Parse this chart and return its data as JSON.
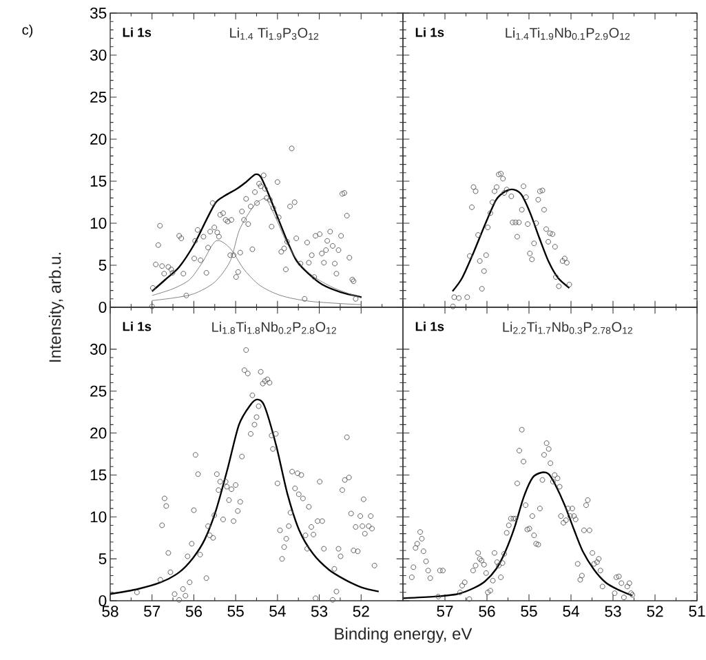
{
  "chart_data": [
    {
      "type": "scatter",
      "title": "Li 1s",
      "subtitle": "Li$_{1.4}$ Ti$_{1.9}$P$_{3}$O$_{12}$",
      "ylabel": "Intensity, arb.u.",
      "annotations": [
        "c)"
      ],
      "xlim": [
        58,
        51
      ],
      "ylim": [
        0,
        35
      ],
      "xticks": [
        58,
        57,
        56,
        55,
        54,
        53,
        52,
        51
      ],
      "yticks": [
        0,
        5,
        10,
        15,
        20,
        25,
        30,
        35
      ],
      "tick_labels": "y",
      "series": [
        {
          "color": "#555555",
          "marker": "circle",
          "x": [
            57.0,
            56.98,
            56.85,
            56.81,
            56.91,
            56.76,
            56.71,
            56.61,
            56.54,
            56.51,
            56.35,
            56.3,
            56.25,
            56.18,
            55.99,
            55.97,
            55.91,
            55.84,
            55.77,
            55.7,
            55.66,
            55.61,
            55.55,
            55.51,
            55.44,
            55.4,
            55.37,
            55.3,
            55.24,
            55.19,
            55.13,
            55.1,
            55.05,
            54.99,
            54.94,
            54.89,
            54.85,
            54.8,
            54.75,
            54.7,
            54.64,
            54.6,
            54.54,
            54.49,
            54.44,
            54.4,
            54.33,
            54.3,
            54.26,
            54.18,
            54.14,
            54.1,
            54.0,
            53.97,
            53.91,
            53.84,
            53.8,
            53.77,
            53.7,
            53.66,
            53.59,
            53.55,
            53.45,
            53.35,
            53.29,
            53.25,
            53.18,
            53.12,
            53.09,
            52.99,
            52.94,
            52.89,
            52.84,
            52.81,
            52.74,
            52.68,
            52.63,
            52.59,
            52.54,
            52.48,
            52.45,
            52.4,
            52.34,
            52.28,
            52.21,
            52.18,
            52.13
          ],
          "values": [
            0.1,
            2.3,
            7.4,
            9.7,
            5.1,
            4.9,
            4.0,
            4.8,
            4.5,
            4.1,
            8.5,
            8.2,
            4.0,
            1.4,
            5.8,
            7.9,
            9.2,
            5.6,
            8.4,
            4.1,
            7.1,
            9.0,
            12.4,
            9.5,
            8.9,
            8.4,
            11.0,
            11.2,
            10.4,
            10.2,
            6.2,
            10.4,
            6.2,
            3.6,
            4.2,
            6.5,
            11.4,
            10.4,
            12.9,
            9.9,
            12.0,
            6.9,
            13.7,
            12.4,
            14.7,
            14.4,
            15.7,
            14.1,
            13.0,
            12.8,
            9.6,
            11.8,
            14.9,
            10.7,
            6.6,
            7.0,
            4.5,
            7.8,
            12.0,
            18.9,
            12.5,
            8.2,
            5.2,
            1.0,
            7.7,
            5.3,
            6.2,
            3.6,
            8.5,
            8.7,
            6.4,
            5.3,
            6.8,
            7.9,
            9.0,
            7.3,
            5.2,
            4.0,
            6.8,
            8.5,
            13.5,
            13.6,
            10.9,
            5.9,
            3.3,
            3.1,
            1.0
          ]
        },
        {
          "type": "line",
          "color": "#000000",
          "x": [
            57.0,
            56.68,
            56.35,
            55.99,
            55.69,
            55.47,
            55.25,
            54.97,
            54.75,
            54.53,
            54.4,
            54.2,
            53.98,
            53.76,
            53.54,
            53.26,
            52.93,
            52.49,
            51.99
          ],
          "values": [
            1.9,
            3.3,
            4.8,
            7.5,
            10.5,
            12.5,
            13.3,
            14.1,
            14.9,
            15.8,
            15.5,
            13.3,
            10.5,
            7.8,
            5.5,
            4.0,
            2.7,
            1.8,
            1.2
          ]
        },
        {
          "type": "line",
          "color": "#777777",
          "x": [
            57.0,
            56.5,
            56.1,
            55.8,
            55.47,
            55.13,
            54.8,
            54.42,
            53.92,
            53.21,
            51.99
          ],
          "values": [
            1.4,
            2.2,
            3.3,
            5.3,
            7.9,
            7.0,
            4.5,
            2.6,
            1.4,
            0.7,
            0.3
          ]
        },
        {
          "type": "line",
          "color": "#777777",
          "x": [
            57.0,
            56.5,
            56.0,
            55.5,
            55.13,
            54.91,
            54.59,
            54.42,
            54.26,
            54.03,
            53.76,
            53.48,
            53.15,
            52.65,
            51.99
          ],
          "values": [
            0.8,
            1.1,
            1.6,
            3.0,
            5.5,
            9.2,
            11.9,
            12.7,
            12.8,
            10.5,
            7.5,
            5.3,
            3.7,
            2.3,
            1.1
          ]
        }
      ]
    },
    {
      "type": "scatter",
      "title": "Li 1s",
      "subtitle": "Li$_{1.4}$Ti$_{1.9}$Nb$_{0.1}$P$_{2.9}$O$_{12}$",
      "xlim": [
        58,
        51
      ],
      "ylim": [
        0,
        35
      ],
      "xticks": [
        58,
        57,
        56,
        55,
        54,
        53,
        52,
        51
      ],
      "yticks": [
        0,
        5,
        10,
        15,
        20,
        25,
        30,
        35
      ],
      "tick_labels": false,
      "series": [
        {
          "color": "#555555",
          "marker": "circle",
          "x": [
            56.81,
            56.78,
            56.67,
            56.47,
            56.41,
            56.36,
            56.32,
            56.27,
            56.21,
            56.17,
            56.12,
            56.07,
            56.02,
            55.98,
            55.92,
            55.87,
            55.82,
            55.77,
            55.72,
            55.67,
            55.62,
            55.59,
            55.53,
            55.42,
            55.39,
            55.32,
            55.28,
            55.24,
            55.17,
            55.13,
            55.07,
            55.03,
            54.98,
            54.93,
            54.88,
            54.83,
            54.78,
            54.74,
            54.68,
            54.64,
            54.59,
            54.5,
            54.44,
            54.54,
            54.38,
            54.36,
            54.29,
            54.2,
            54.15,
            54.1,
            54.04
          ],
          "values": [
            0.1,
            1.2,
            1.1,
            1.2,
            6.1,
            11.9,
            14.3,
            13.8,
            8.6,
            5.5,
            2.2,
            4.3,
            6.2,
            9.5,
            11.2,
            12.5,
            13.8,
            14.3,
            15.8,
            15.9,
            15.3,
            13.6,
            14.0,
            13.2,
            10.1,
            10.1,
            8.4,
            10.1,
            11.6,
            14.4,
            13.1,
            9.9,
            6.4,
            5.7,
            7.6,
            10.0,
            12.8,
            13.8,
            13.9,
            11.6,
            9.3,
            8.8,
            8.7,
            7.8,
            7.2,
            3.6,
            2.5,
            5.5,
            5.8,
            5.3,
            2.7
          ]
        },
        {
          "type": "line",
          "color": "#000000",
          "x": [
            56.82,
            56.59,
            56.32,
            56.05,
            55.78,
            55.56,
            55.37,
            55.18,
            54.97,
            54.75,
            54.53,
            54.31,
            54.04
          ],
          "values": [
            1.9,
            3.5,
            6.5,
            9.8,
            12.8,
            13.8,
            14.0,
            13.4,
            11.2,
            8.2,
            5.4,
            3.5,
            2.3
          ]
        }
      ]
    },
    {
      "type": "scatter",
      "title": "Li 1s",
      "subtitle": "Li$_{1.8}$Ti$_{1.8}$Nb$_{0.2}$P$_{2.8}$O$_{12}$",
      "xlabel": "Binding energy, eV",
      "xlim": [
        58,
        51
      ],
      "ylim": [
        0,
        35
      ],
      "xticks": [
        58,
        57,
        56,
        55,
        54,
        53,
        52
      ],
      "yticks": [
        0,
        5,
        10,
        15,
        20,
        25,
        30
      ],
      "series": [
        {
          "color": "#555555",
          "marker": "circle",
          "x": [
            57.36,
            56.8,
            56.76,
            56.7,
            56.66,
            56.61,
            56.56,
            56.46,
            56.35,
            56.26,
            56.2,
            56.15,
            56.1,
            56.05,
            56.0,
            55.96,
            55.9,
            55.85,
            55.7,
            55.66,
            55.62,
            55.54,
            55.51,
            55.45,
            55.41,
            55.37,
            55.3,
            55.24,
            55.21,
            55.16,
            55.1,
            55.05,
            55.0,
            54.95,
            54.89,
            54.85,
            54.79,
            54.75,
            54.71,
            54.64,
            54.6,
            54.55,
            54.5,
            54.45,
            54.4,
            54.35,
            54.3,
            54.24,
            54.19,
            54.14,
            54.11,
            54.04,
            54.0,
            53.94,
            53.89,
            53.84,
            53.79,
            53.73,
            53.69,
            53.65,
            53.58,
            53.52,
            53.49,
            53.43,
            53.39,
            53.33,
            53.29,
            53.25,
            53.19,
            53.14,
            53.09,
            53.04,
            52.99,
            52.93,
            52.89,
            52.68,
            52.64,
            52.59,
            52.54,
            52.49,
            52.45,
            52.39,
            52.34,
            52.29,
            52.24,
            52.18,
            52.13,
            52.08,
            52.02,
            51.97,
            51.94,
            51.91,
            51.82,
            51.77,
            51.74,
            51.68
          ],
          "values": [
            1.0,
            2.5,
            9.0,
            12.2,
            11.3,
            5.7,
            3.4,
            0.8,
            0.1,
            1.4,
            0.6,
            5.3,
            2.2,
            6.8,
            10.8,
            17.4,
            15.1,
            5.5,
            2.7,
            8.9,
            7.8,
            7.5,
            10.2,
            15.1,
            13.2,
            14.2,
            9.7,
            14.2,
            13.6,
            12.0,
            13.3,
            9.5,
            13.8,
            10.7,
            11.8,
            17.2,
            27.5,
            29.9,
            27.1,
            19.9,
            24.5,
            21.0,
            21.9,
            23.2,
            27.3,
            25.9,
            26.2,
            26.4,
            26.0,
            19.7,
            18.1,
            19.9,
            14.0,
            8.4,
            5.0,
            6.4,
            7.4,
            8.9,
            10.5,
            15.4,
            13.4,
            15.2,
            12.7,
            15.0,
            12.2,
            7.8,
            6.2,
            11.2,
            8.8,
            7.9,
            0.3,
            9.5,
            14.2,
            9.5,
            6.2,
            0.1,
            3.8,
            1.1,
            6.2,
            5.3,
            13.2,
            14.4,
            19.5,
            14.7,
            10.4,
            6.0,
            8.8,
            5.9,
            10.1,
            8.9,
            12.1,
            8.0,
            8.9,
            10.1,
            8.6,
            4.2
          ]
        },
        {
          "type": "line",
          "color": "#000000",
          "x": [
            58.0,
            57.34,
            56.79,
            56.35,
            56.02,
            55.74,
            55.47,
            55.19,
            54.92,
            54.64,
            54.48,
            54.31,
            54.03,
            53.76,
            53.48,
            53.15,
            52.77,
            52.38,
            51.99,
            51.58
          ],
          "values": [
            0.8,
            1.4,
            2.2,
            3.4,
            5.1,
            7.3,
            10.8,
            15.8,
            21.0,
            23.4,
            24.0,
            23.2,
            18.5,
            12.7,
            8.4,
            5.6,
            3.7,
            2.5,
            1.6,
            1.1
          ]
        }
      ]
    },
    {
      "type": "scatter",
      "title": "Li 1s",
      "subtitle": "Li$_{2.2}$Ti$_{1.7}$Nb$_{0.3}$P$_{2.78}$O$_{12}$",
      "xlim": [
        58,
        51
      ],
      "ylim": [
        0,
        35
      ],
      "xticks": [
        57,
        56,
        55,
        54,
        53,
        52,
        51
      ],
      "yticks": [
        0,
        5,
        10,
        15,
        20,
        25,
        30
      ],
      "tick_labels": "x",
      "series": [
        {
          "color": "#555555",
          "marker": "circle",
          "x": [
            57.79,
            57.75,
            57.7,
            57.66,
            57.59,
            57.55,
            57.51,
            57.45,
            57.4,
            57.35,
            57.16,
            57.12,
            57.05,
            56.64,
            56.59,
            56.53,
            56.42,
            56.33,
            56.27,
            56.21,
            56.17,
            56.13,
            56.07,
            56.02,
            55.98,
            55.92,
            55.86,
            55.82,
            55.76,
            55.72,
            55.67,
            55.63,
            55.59,
            55.53,
            55.48,
            55.43,
            55.37,
            55.32,
            55.28,
            55.23,
            55.17,
            55.13,
            55.08,
            55.04,
            54.99,
            54.92,
            54.88,
            54.83,
            54.78,
            54.74,
            54.68,
            54.64,
            54.58,
            54.53,
            54.49,
            54.43,
            54.39,
            54.32,
            54.27,
            54.24,
            54.18,
            54.12,
            54.07,
            54.02,
            53.97,
            53.93,
            53.89,
            53.84,
            53.78,
            53.74,
            53.69,
            53.64,
            53.6,
            53.56,
            53.49,
            53.45,
            53.38,
            53.34,
            53.3,
            53.25,
            52.96,
            52.92,
            52.86,
            52.8,
            52.74,
            52.66,
            52.61,
            52.57,
            52.54
          ],
          "values": [
            2.8,
            4.0,
            6.3,
            6.8,
            8.2,
            7.4,
            5.9,
            4.7,
            3.6,
            2.7,
            0.5,
            3.6,
            3.6,
            1.0,
            1.8,
            2.2,
            0.2,
            3.6,
            4.2,
            5.7,
            5.0,
            4.8,
            4.3,
            3.3,
            1.0,
            1.2,
            2.4,
            5.7,
            4.6,
            4.2,
            2.8,
            4.5,
            5.6,
            8.1,
            9.0,
            9.8,
            9.8,
            9.8,
            14.0,
            17.9,
            20.4,
            16.6,
            11.4,
            8.5,
            8.6,
            10.1,
            7.8,
            6.8,
            6.7,
            11.0,
            14.4,
            17.4,
            18.8,
            18.1,
            16.4,
            14.2,
            15.0,
            14.6,
            13.6,
            10.1,
            9.3,
            9.6,
            11.0,
            10.1,
            11.0,
            10.1,
            9.7,
            4.4,
            2.5,
            3.0,
            8.4,
            11.4,
            12.0,
            8.4,
            5.7,
            4.4,
            4.6,
            5.0,
            3.6,
            1.7,
            0.9,
            2.8,
            2.9,
            2.1,
            0.4,
            1.7,
            2.1,
            0.9,
            0.7
          ]
        },
        {
          "type": "line",
          "color": "#000000",
          "x": [
            57.99,
            57.24,
            56.7,
            56.32,
            56.05,
            55.78,
            55.56,
            55.34,
            55.13,
            54.91,
            54.69,
            54.53,
            54.37,
            54.15,
            53.93,
            53.72,
            53.45,
            53.18,
            52.91,
            52.54
          ],
          "values": [
            0.3,
            0.5,
            0.8,
            1.5,
            2.3,
            3.8,
            5.9,
            8.8,
            12.3,
            14.7,
            15.3,
            15.1,
            13.8,
            11.4,
            8.5,
            5.9,
            3.7,
            2.2,
            1.4,
            0.6
          ]
        }
      ]
    }
  ]
}
